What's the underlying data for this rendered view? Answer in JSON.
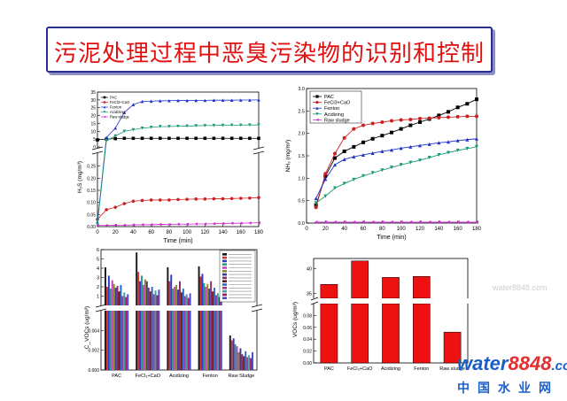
{
  "slide": {
    "title": "污泥处理过程中恶臭污染物的识别和控制",
    "logo": {
      "word": "water",
      "number": "8848",
      "suffix": ".com",
      "cn": "中国水业网"
    },
    "watermark": "water8848.com"
  },
  "chart_data": [
    {
      "type": "line",
      "panel": "h2s",
      "ylabel": "H₂S (mg/m³)",
      "xlabel": "Time (min)",
      "xlim": [
        0,
        180
      ],
      "xticks": [
        0,
        20,
        40,
        60,
        80,
        100,
        120,
        140,
        160,
        180
      ],
      "ylim_upper": [
        0,
        35
      ],
      "yticks_upper": [
        0,
        5,
        10,
        15,
        20,
        25,
        30,
        35
      ],
      "ylim_lower": [
        0,
        0.3
      ],
      "yticks_lower": [
        0.0,
        0.05,
        0.1,
        0.15,
        0.2,
        0.25
      ],
      "x": [
        0,
        10,
        20,
        30,
        40,
        50,
        60,
        70,
        80,
        90,
        100,
        110,
        120,
        130,
        140,
        150,
        160,
        170,
        180
      ],
      "series": [
        {
          "name": "PAC",
          "color": "#000000",
          "marker": "square",
          "values": [
            4.5,
            5,
            5.3,
            5.5,
            5.5,
            5.5,
            5.5,
            5.5,
            5.5,
            5.5,
            5.5,
            5.5,
            5.5,
            5.5,
            5.5,
            5.5,
            5.5,
            5.5,
            5.5
          ]
        },
        {
          "name": "FeCl3+CaO",
          "color": "#cc2020",
          "marker": "circle",
          "values": [
            0.03,
            0.07,
            0.08,
            0.095,
            0.105,
            0.108,
            0.11,
            0.11,
            0.11,
            0.112,
            0.113,
            0.114,
            0.114,
            0.115,
            0.115,
            0.116,
            0.117,
            0.118,
            0.12
          ]
        },
        {
          "name": "Fenton",
          "color": "#1f32c8",
          "marker": "triangle-up",
          "values": [
            0.02,
            6,
            12,
            22,
            27,
            29,
            29.2,
            29.4,
            29.5,
            29.6,
            29.6,
            29.7,
            29.7,
            29.8,
            29.8,
            29.8,
            29.9,
            29.9,
            30
          ]
        },
        {
          "name": "Acidizing",
          "color": "#1a9a7a",
          "marker": "triangle-down",
          "values": [
            0.01,
            4,
            7,
            10,
            11,
            12,
            12.5,
            13,
            13,
            13.2,
            13.3,
            13.5,
            13.6,
            13.7,
            13.8,
            13.9,
            13.9,
            14,
            14
          ]
        },
        {
          "name": "Raw sludge",
          "color": "#cc2ecc",
          "marker": "triangle-left",
          "values": [
            0.005,
            0.005,
            0.006,
            0.006,
            0.007,
            0.008,
            0.008,
            0.009,
            0.009,
            0.01,
            0.01,
            0.011,
            0.011,
            0.012,
            0.013,
            0.014,
            0.014,
            0.015,
            0.016
          ]
        }
      ],
      "legend_position": "top-left"
    },
    {
      "type": "line",
      "panel": "nh3",
      "ylabel": "NH₃ (mg/m³)",
      "xlabel": "Time (min)",
      "xlim": [
        0,
        180
      ],
      "xticks": [
        0,
        20,
        40,
        60,
        80,
        100,
        120,
        140,
        160,
        180
      ],
      "ylim": [
        0,
        3.0
      ],
      "yticks": [
        0.0,
        0.5,
        1.0,
        1.5,
        2.0,
        2.5,
        3.0
      ],
      "x": [
        10,
        20,
        30,
        40,
        50,
        60,
        70,
        80,
        90,
        100,
        110,
        120,
        130,
        140,
        150,
        160,
        170,
        180
      ],
      "series": [
        {
          "name": "PAC",
          "color": "#000000",
          "marker": "square",
          "values": [
            0.4,
            1.05,
            1.45,
            1.6,
            1.7,
            1.8,
            1.88,
            1.95,
            2.02,
            2.1,
            2.18,
            2.25,
            2.32,
            2.4,
            2.48,
            2.58,
            2.66,
            2.76
          ]
        },
        {
          "name": "FeCl3+CaO",
          "color": "#cc2020",
          "marker": "circle",
          "values": [
            0.35,
            1.1,
            1.55,
            1.9,
            2.1,
            2.18,
            2.22,
            2.25,
            2.28,
            2.3,
            2.31,
            2.33,
            2.34,
            2.35,
            2.36,
            2.37,
            2.38,
            2.38
          ]
        },
        {
          "name": "Fenton",
          "color": "#1f32c8",
          "marker": "triangle-up",
          "values": [
            0.55,
            0.98,
            1.3,
            1.42,
            1.48,
            1.52,
            1.56,
            1.6,
            1.63,
            1.67,
            1.7,
            1.73,
            1.76,
            1.79,
            1.81,
            1.84,
            1.86,
            1.88
          ]
        },
        {
          "name": "Acidizing",
          "color": "#1a9a7a",
          "marker": "triangle-down",
          "values": [
            0.45,
            0.6,
            0.78,
            0.88,
            0.97,
            1.05,
            1.12,
            1.18,
            1.24,
            1.3,
            1.35,
            1.4,
            1.46,
            1.52,
            1.57,
            1.62,
            1.66,
            1.7
          ]
        },
        {
          "name": "Raw sludge",
          "color": "#cc2ecc",
          "marker": "triangle-left",
          "values": [
            0.02,
            0.02,
            0.02,
            0.02,
            0.02,
            0.02,
            0.02,
            0.02,
            0.02,
            0.02,
            0.02,
            0.02,
            0.02,
            0.02,
            0.02,
            0.02,
            0.02,
            0.02
          ]
        }
      ],
      "legend_position": "top-left"
    },
    {
      "type": "bar",
      "panel": "voc-components",
      "ylabel": "C_VOCs (ug/m³)",
      "categories": [
        "PAC",
        "FeCl₃+CaO",
        "Acidizing",
        "Fenton",
        "Raw Sludge"
      ],
      "ylim_upper": [
        0,
        6
      ],
      "yticks_upper": [
        1,
        2,
        3,
        4,
        5,
        6
      ],
      "ylim_lower": [
        0,
        0.006
      ],
      "yticks_lower": [
        0.0,
        0.002,
        0.004
      ],
      "groups": [
        {
          "category": "PAC",
          "values": [
            4.1,
            2.0,
            3.2,
            1.8,
            2.7,
            2.3,
            1.9,
            2.1,
            1.5,
            2.2,
            1.0,
            1.4,
            0.9,
            1.2
          ]
        },
        {
          "category": "FeCl₃+CaO",
          "values": [
            5.7,
            3.6,
            2.6,
            3.2,
            2.2,
            2.8,
            2.6,
            1.9,
            1.5,
            2.0,
            1.2,
            1.6,
            1.1,
            1.7
          ]
        },
        {
          "category": "Acidizing",
          "values": [
            4.1,
            2.6,
            3.3,
            1.8,
            2.0,
            2.2,
            1.7,
            2.6,
            1.4,
            1.8,
            1.0,
            1.2,
            0.8,
            1.3
          ]
        },
        {
          "category": "Fenton",
          "values": [
            4.2,
            3.1,
            3.4,
            2.4,
            2.0,
            2.3,
            1.8,
            2.6,
            1.5,
            1.9,
            1.1,
            1.3,
            0.9,
            1.1
          ]
        },
        {
          "category": "Raw Sludge",
          "values": [
            0.0035,
            0.003,
            0.0032,
            0.0026,
            0.0024,
            0.0018,
            0.0022,
            0.0016,
            0.0014,
            0.0019,
            0.0013,
            0.0015,
            0.0012,
            0.0018
          ]
        }
      ],
      "bar_colors": [
        "#1a1a1a",
        "#d03030",
        "#2a3bd0",
        "#2a9a7a",
        "#c83cc8",
        "#8a8a1a",
        "#3a3a9a",
        "#8a2a6a",
        "#6a1a1a",
        "#2a6ad0",
        "#9a3aa0",
        "#3aa0a0",
        "#a01a5a",
        "#4a4ad0"
      ],
      "legend_position": "top-right"
    },
    {
      "type": "bar",
      "panel": "voc-total",
      "ylabel": "VOCs (ug/m³)",
      "categories": [
        "PAC",
        "FeCl₃+CaO",
        "Acidizing",
        "Fenton",
        "Raw sludge"
      ],
      "values": [
        36.8,
        41.5,
        38.2,
        38.4,
        0.052
      ],
      "ylim_upper": [
        34,
        42
      ],
      "yticks_upper": [
        35,
        40
      ],
      "ylim_lower": [
        0,
        0.1
      ],
      "yticks_lower": [
        0.0,
        0.02,
        0.04,
        0.06,
        0.08
      ],
      "bar_color": "#ee1111"
    }
  ]
}
